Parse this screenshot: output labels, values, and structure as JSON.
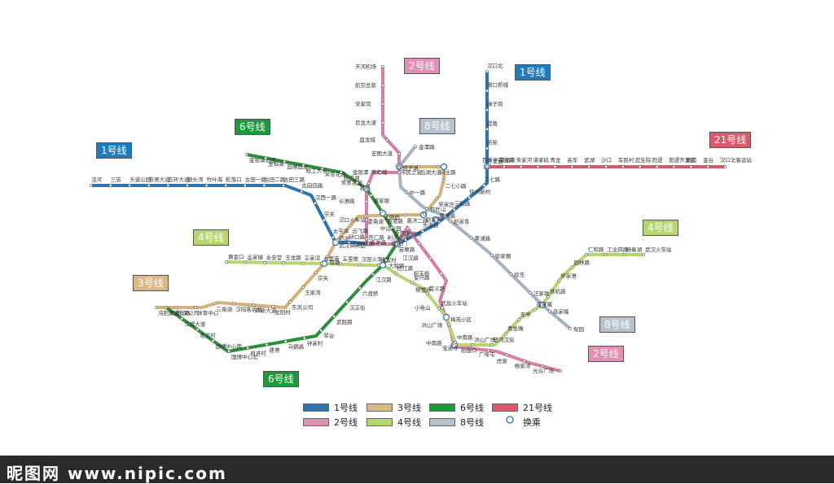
{
  "colors": {
    "line1": "#2d74b0",
    "line2": "#d97ca6",
    "line3": "#d4b27a",
    "line4": "#b6d66f",
    "line6": "#2b8f3a",
    "line8": "#a3b4c2",
    "line21": "#d9566a"
  },
  "line_tags": [
    {
      "id": "t1a",
      "label": "1号线",
      "color": "#1a7cc2"
    },
    {
      "id": "t1b",
      "label": "1号线",
      "color": "#1a7cc2"
    },
    {
      "id": "t2a",
      "label": "2号线",
      "color": "#e38eb3"
    },
    {
      "id": "t2b",
      "label": "2号线",
      "color": "#e38eb3"
    },
    {
      "id": "t3",
      "label": "3号线",
      "color": "#d9b886"
    },
    {
      "id": "t4a",
      "label": "4号线",
      "color": "#b6d66f"
    },
    {
      "id": "t4b",
      "label": "4号线",
      "color": "#b6d66f"
    },
    {
      "id": "t6a",
      "label": "6号线",
      "color": "#1d9a3a"
    },
    {
      "id": "t6b",
      "label": "6号线",
      "color": "#1d9a3a"
    },
    {
      "id": "t8a",
      "label": "8号线",
      "color": "#b6c2cc"
    },
    {
      "id": "t8b",
      "label": "8号线",
      "color": "#b6c2cc"
    },
    {
      "id": "t21",
      "label": "21号线",
      "color": "#d95a6d"
    }
  ],
  "legend": [
    {
      "label": "1号线",
      "color": "#2d74b0"
    },
    {
      "label": "2号线",
      "color": "#e38eb3"
    },
    {
      "label": "3号线",
      "color": "#d9b886"
    },
    {
      "label": "4号线",
      "color": "#b6d66f"
    },
    {
      "label": "6号线",
      "color": "#1d9a3a"
    },
    {
      "label": "8号线",
      "color": "#b6c2cc"
    },
    {
      "label": "21号线",
      "color": "#d95a6d"
    },
    {
      "label": "换乘",
      "color": "#ffffff"
    }
  ],
  "stations": {
    "line1": [
      "泾河",
      "三店",
      "头道公园",
      "东吴大道",
      "五环大道",
      "额头湾",
      "竹叶海",
      "舵落口",
      "古田一路",
      "古田二路",
      "古田三路",
      "古田四路",
      "汉西一路",
      "宗关",
      "太平洋",
      "硚口路",
      "崇仁路",
      "利济北路",
      "友谊路",
      "头道街",
      "黄浦路",
      "三阳路",
      "徐州新村",
      "二七路",
      "丹水池",
      "新荣",
      "堤角",
      "滕子岗",
      "滠口新城",
      "汉口北"
    ],
    "line2": [
      "天河机场",
      "航空总部",
      "宋家岗",
      "巨龙大道",
      "盘龙城",
      "宏图大道",
      "常青城",
      "金银潭",
      "常青花园",
      "长港路",
      "汉口火车站",
      "范湖",
      "王家墩东",
      "青年路",
      "中山公园",
      "循礼门",
      "江汉路",
      "积玉桥",
      "螃蟹岬",
      "小龟山",
      "洪山广场",
      "中南路",
      "宝通寺",
      "街道口",
      "广埠屯",
      "虎泉",
      "杨家湾",
      "光谷广场"
    ],
    "line3": [
      "沌阳大道",
      "东风公司",
      "体育中心",
      "三角湖",
      "汉阳客运站",
      "四新大道",
      "龙阳村",
      "东风公司",
      "王家湾",
      "宗关",
      "双墩",
      "武汉商务区",
      "云飞路",
      "菱角湖",
      "香港路",
      "惠济二路",
      "赵家条",
      "罗家庄",
      "二七小路",
      "兴业路",
      "后湖大道",
      "市民之家"
    ],
    "line4": [
      "黄金口",
      "孟家铺",
      "永安堂",
      "玉龙路",
      "王家湾",
      "七里庙",
      "五里墩",
      "汉阳火车站",
      "钟家村",
      "拦江路",
      "复兴路",
      "首义路",
      "武昌火车站",
      "梅苑小区",
      "中南路",
      "洪山广场",
      "楚河汉街",
      "青鱼嘴",
      "东亭",
      "岳家嘴",
      "铁机路",
      "罗家港",
      "园林路",
      "仁和路",
      "工业四路",
      "杨春湖",
      "武汉火车站"
    ],
    "line6": [
      "金银湖公园",
      "金银湖",
      "园博园北",
      "轻工大学",
      "常青花园",
      "杨汉湖",
      "石桥",
      "唐家墩",
      "三眼桥",
      "香港路",
      "苗栗路",
      "大智路",
      "江汉路",
      "六渡桥",
      "汉正街",
      "武胜路",
      "琴台",
      "钟家村",
      "马鹦路",
      "建港",
      "前进村",
      "国博中心北",
      "国博中心南",
      "老关村",
      "江城大道",
      "车城东路"
    ],
    "line8": [
      "金潭路",
      "塔子湖",
      "中一路",
      "竹叶山",
      "赵家条",
      "黄浦路",
      "徐家棚",
      "徐东",
      "汪家墩",
      "岳家嘴",
      "梨园"
    ],
    "line21": [
      "百步亭花园路",
      "幸福湾",
      "朱家河",
      "谌家矶",
      "青龙",
      "高车",
      "武湖",
      "沙口",
      "军民村",
      "武生院",
      "阳逻",
      "阳逻开发区",
      "施岗",
      "金台",
      "汉口北客运站"
    ]
  },
  "footer": {
    "watermark": "昵图网 www.nipic.com"
  }
}
